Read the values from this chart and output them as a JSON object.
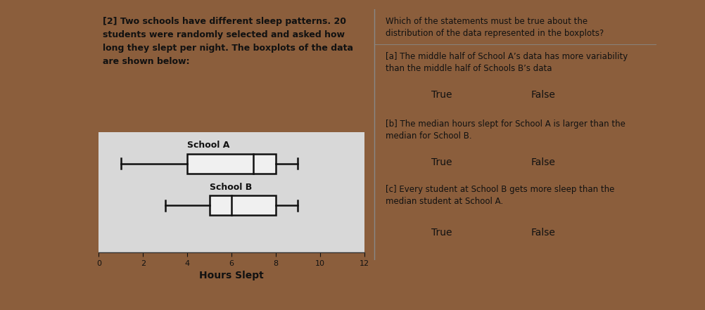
{
  "school_a": {
    "label": "School A",
    "min": 1,
    "q1": 4,
    "median": 7,
    "q3": 8,
    "max": 9
  },
  "school_b": {
    "label": "School B",
    "min": 3,
    "q1": 5,
    "median": 6,
    "q3": 8,
    "max": 9
  },
  "xlabel": "Hours Slept",
  "xlim": [
    0,
    12
  ],
  "xticks": [
    0,
    2,
    4,
    6,
    8,
    10,
    12
  ],
  "box_facecolor": "#f0f0f0",
  "box_edgecolor": "#111111",
  "whisker_color": "#111111",
  "paper_color": "#d8d8d8",
  "cell_bg": "#d0d0d0",
  "wood_color": "#8B5E3C",
  "text_color": "#111111",
  "divider_color": "#888888",
  "question_text": "[2] Two schools have different sleep patterns. 20\nstudents were randomly selected and asked how\nlong they slept per night. The boxplots of the data\nare shown below:",
  "right_header": "Which of the statements must be true about the\ndistribution of the data represented in the boxplots?",
  "statement_a": "[a] The middle half of School A’s data has more variability\nthan the middle half of Schools B’s data",
  "statement_b": "[b] The median hours slept for School A is larger than the\nmedian for School B.",
  "statement_c": "[c] Every student at School B gets more sleep than the\nmedian student at School A.",
  "font_size_body": 9,
  "font_size_tf": 10
}
